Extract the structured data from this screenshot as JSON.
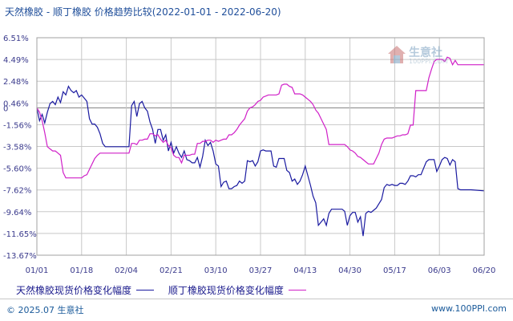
{
  "title": "天然橡胶 - 顺丁橡胶  价格趋势比较(2022-01-01 - 2022-06-20)",
  "watermark": {
    "text": "生意社",
    "sub": "100PPI.COM"
  },
  "footer": {
    "left": "© 2025.07 生意社",
    "right": "www.100PPI.com"
  },
  "colors": {
    "series1": "#1a1aa0",
    "series2": "#d020c8",
    "grid": "#c8c8c8",
    "zero": "#808080"
  },
  "chart_data": {
    "type": "line",
    "title": "天然橡胶 - 顺丁橡胶  价格趋势比较(2022-01-01 - 2022-06-20)",
    "y_ticks": [
      "6.51%",
      "4.49%",
      "2.48%",
      "0.46%",
      "-1.56%",
      "-3.58%",
      "-5.60%",
      "-7.62%",
      "-9.64%",
      "-11.65%",
      "-13.67%"
    ],
    "x_ticks": [
      "01/01",
      "01/18",
      "02/04",
      "02/21",
      "03/10",
      "03/27",
      "04/13",
      "04/30",
      "05/17",
      "06/03",
      "06/20"
    ],
    "extra_y_label": "0",
    "ylim": [
      -13.67,
      6.51
    ],
    "x_range_days": [
      0,
      170
    ],
    "grid": true,
    "legend_position": "bottom",
    "series": [
      {
        "name": "天然橡胶现货价格变化幅度",
        "points": [
          [
            0,
            0
          ],
          [
            1,
            -1.2
          ],
          [
            2,
            -0.6
          ],
          [
            3,
            -1.4
          ],
          [
            4,
            -0.4
          ],
          [
            5,
            0.4
          ],
          [
            6,
            0.6
          ],
          [
            7,
            0.3
          ],
          [
            8,
            1.0
          ],
          [
            9,
            0.5
          ],
          [
            10,
            1.5
          ],
          [
            11,
            1.2
          ],
          [
            12,
            2.0
          ],
          [
            13,
            1.6
          ],
          [
            14,
            1.4
          ],
          [
            15,
            1.6
          ],
          [
            16,
            1.0
          ],
          [
            17,
            1.2
          ],
          [
            18,
            0.9
          ],
          [
            19,
            0.6
          ],
          [
            20,
            -1.0
          ],
          [
            21,
            -1.5
          ],
          [
            22,
            -1.5
          ],
          [
            23,
            -1.8
          ],
          [
            24,
            -2.4
          ],
          [
            25,
            -3.3
          ],
          [
            26,
            -3.6
          ],
          [
            28,
            -3.6
          ],
          [
            30,
            -3.6
          ],
          [
            32,
            -3.6
          ],
          [
            34,
            -3.6
          ],
          [
            35,
            -3.6
          ],
          [
            36,
            0.2
          ],
          [
            37,
            0.6
          ],
          [
            38,
            -0.8
          ],
          [
            39,
            0.4
          ],
          [
            40,
            0.6
          ],
          [
            41,
            0.0
          ],
          [
            42,
            -0.3
          ],
          [
            43,
            -1.3
          ],
          [
            44,
            -2.0
          ],
          [
            45,
            -3.3
          ],
          [
            46,
            -2.0
          ],
          [
            47,
            -2.0
          ],
          [
            48,
            -3.0
          ],
          [
            49,
            -2.5
          ],
          [
            50,
            -4.0
          ],
          [
            51,
            -3.2
          ],
          [
            52,
            -4.2
          ],
          [
            53,
            -3.6
          ],
          [
            54,
            -4.2
          ],
          [
            55,
            -4.6
          ],
          [
            56,
            -4.0
          ],
          [
            57,
            -4.8
          ],
          [
            58,
            -4.9
          ],
          [
            59,
            -5.1
          ],
          [
            60,
            -5.1
          ],
          [
            61,
            -4.6
          ],
          [
            62,
            -5.5
          ],
          [
            63,
            -4.5
          ],
          [
            64,
            -3.0
          ],
          [
            65,
            -3.5
          ],
          [
            66,
            -3.2
          ],
          [
            67,
            -4.0
          ],
          [
            68,
            -5.2
          ],
          [
            69,
            -5.4
          ],
          [
            70,
            -7.3
          ],
          [
            71,
            -6.9
          ],
          [
            72,
            -6.8
          ],
          [
            73,
            -7.5
          ],
          [
            74,
            -7.5
          ],
          [
            75,
            -7.3
          ],
          [
            76,
            -7.2
          ],
          [
            77,
            -6.8
          ],
          [
            78,
            -7.0
          ],
          [
            79,
            -6.8
          ],
          [
            80,
            -4.9
          ],
          [
            81,
            -5.0
          ],
          [
            82,
            -4.9
          ],
          [
            83,
            -5.4
          ],
          [
            84,
            -5.0
          ],
          [
            85,
            -4.0
          ],
          [
            86,
            -3.9
          ],
          [
            87,
            -4.0
          ],
          [
            88,
            -4.0
          ],
          [
            89,
            -4.0
          ],
          [
            90,
            -5.4
          ],
          [
            91,
            -5.5
          ],
          [
            92,
            -4.7
          ],
          [
            93,
            -4.7
          ],
          [
            94,
            -4.7
          ],
          [
            95,
            -5.8
          ],
          [
            96,
            -6.0
          ],
          [
            97,
            -6.8
          ],
          [
            98,
            -6.6
          ],
          [
            99,
            -7.1
          ],
          [
            100,
            -6.8
          ],
          [
            101,
            -6.2
          ],
          [
            102,
            -5.4
          ],
          [
            103,
            -6.3
          ],
          [
            104,
            -7.2
          ],
          [
            105,
            -8.2
          ],
          [
            106,
            -8.8
          ],
          [
            107,
            -10.9
          ],
          [
            108,
            -10.6
          ],
          [
            109,
            -10.3
          ],
          [
            110,
            -10.9
          ],
          [
            111,
            -9.8
          ],
          [
            112,
            -9.4
          ],
          [
            114,
            -9.4
          ],
          [
            115,
            -9.4
          ],
          [
            116,
            -9.4
          ],
          [
            117,
            -9.6
          ],
          [
            118,
            -10.9
          ],
          [
            119,
            -10.0
          ],
          [
            120,
            -9.7
          ],
          [
            121,
            -9.7
          ],
          [
            122,
            -10.6
          ],
          [
            123,
            -10.1
          ],
          [
            124,
            -11.9
          ],
          [
            125,
            -9.8
          ],
          [
            126,
            -9.6
          ],
          [
            127,
            -9.7
          ],
          [
            128,
            -9.5
          ],
          [
            129,
            -9.3
          ],
          [
            130,
            -8.9
          ],
          [
            131,
            -8.5
          ],
          [
            132,
            -7.4
          ],
          [
            133,
            -7.1
          ],
          [
            134,
            -7.2
          ],
          [
            135,
            -7.1
          ],
          [
            136,
            -7.2
          ],
          [
            137,
            -7.2
          ],
          [
            138,
            -7.0
          ],
          [
            139,
            -7.0
          ],
          [
            140,
            -7.1
          ],
          [
            141,
            -6.8
          ],
          [
            142,
            -6.3
          ],
          [
            143,
            -6.3
          ],
          [
            144,
            -6.4
          ],
          [
            145,
            -6.2
          ],
          [
            146,
            -6.2
          ],
          [
            147,
            -5.6
          ],
          [
            148,
            -5.0
          ],
          [
            149,
            -4.8
          ],
          [
            150,
            -4.8
          ],
          [
            151,
            -4.8
          ],
          [
            152,
            -5.9
          ],
          [
            153,
            -5.4
          ],
          [
            154,
            -4.8
          ],
          [
            155,
            -4.6
          ],
          [
            156,
            -4.7
          ],
          [
            157,
            -5.3
          ],
          [
            158,
            -4.8
          ],
          [
            159,
            -5.0
          ],
          [
            160,
            -7.5
          ],
          [
            161,
            -7.6
          ],
          [
            162,
            -7.6
          ],
          [
            165,
            -7.6
          ],
          [
            170,
            -7.7
          ]
        ]
      },
      {
        "name": "顺丁橡胶现货价格变化幅度",
        "points": [
          [
            0,
            0
          ],
          [
            1,
            -0.4
          ],
          [
            2,
            -1.2
          ],
          [
            3,
            -2.3
          ],
          [
            4,
            -3.6
          ],
          [
            5,
            -3.8
          ],
          [
            6,
            -4.0
          ],
          [
            7,
            -4.0
          ],
          [
            8,
            -4.2
          ],
          [
            9,
            -4.4
          ],
          [
            10,
            -6.0
          ],
          [
            11,
            -6.5
          ],
          [
            12,
            -6.5
          ],
          [
            13,
            -6.5
          ],
          [
            15,
            -6.5
          ],
          [
            17,
            -6.5
          ],
          [
            18,
            -6.3
          ],
          [
            19,
            -6.2
          ],
          [
            20,
            -5.7
          ],
          [
            22,
            -4.7
          ],
          [
            23,
            -4.4
          ],
          [
            24,
            -4.2
          ],
          [
            30,
            -4.2
          ],
          [
            35,
            -4.2
          ],
          [
            36,
            -3.3
          ],
          [
            37,
            -3.3
          ],
          [
            38,
            -3.4
          ],
          [
            39,
            -3.0
          ],
          [
            40,
            -3.0
          ],
          [
            41,
            -2.9
          ],
          [
            42,
            -2.9
          ],
          [
            43,
            -2.4
          ],
          [
            44,
            -2.4
          ],
          [
            45,
            -2.6
          ],
          [
            46,
            -2.5
          ],
          [
            47,
            -2.9
          ],
          [
            48,
            -3.2
          ],
          [
            49,
            -3.0
          ],
          [
            50,
            -3.5
          ],
          [
            51,
            -3.7
          ],
          [
            52,
            -4.4
          ],
          [
            53,
            -4.6
          ],
          [
            54,
            -4.6
          ],
          [
            55,
            -5.1
          ],
          [
            56,
            -4.4
          ],
          [
            57,
            -4.4
          ],
          [
            58,
            -4.4
          ],
          [
            59,
            -4.3
          ],
          [
            60,
            -4.3
          ],
          [
            61,
            -3.3
          ],
          [
            62,
            -3.3
          ],
          [
            63,
            -3.1
          ],
          [
            64,
            -3.1
          ],
          [
            65,
            -3.0
          ],
          [
            66,
            -3.0
          ],
          [
            67,
            -3.2
          ],
          [
            68,
            -3.0
          ],
          [
            69,
            -3.1
          ],
          [
            70,
            -3.0
          ],
          [
            71,
            -2.9
          ],
          [
            72,
            -2.9
          ],
          [
            73,
            -2.5
          ],
          [
            74,
            -2.5
          ],
          [
            75,
            -2.3
          ],
          [
            76,
            -2.0
          ],
          [
            77,
            -1.6
          ],
          [
            78,
            -1.3
          ],
          [
            79,
            -1.0
          ],
          [
            80,
            -0.3
          ],
          [
            81,
            0.0
          ],
          [
            82,
            0.1
          ],
          [
            83,
            0.3
          ],
          [
            84,
            0.6
          ],
          [
            85,
            0.7
          ],
          [
            86,
            1.0
          ],
          [
            87,
            1.1
          ],
          [
            88,
            1.2
          ],
          [
            89,
            1.2
          ],
          [
            90,
            1.2
          ],
          [
            91,
            1.2
          ],
          [
            92,
            1.3
          ],
          [
            93,
            2.1
          ],
          [
            94,
            2.2
          ],
          [
            95,
            2.2
          ],
          [
            96,
            2.0
          ],
          [
            97,
            1.9
          ],
          [
            98,
            1.3
          ],
          [
            99,
            1.3
          ],
          [
            100,
            1.3
          ],
          [
            101,
            1.2
          ],
          [
            102,
            1.0
          ],
          [
            103,
            0.8
          ],
          [
            104,
            0.6
          ],
          [
            105,
            0.3
          ],
          [
            106,
            -0.2
          ],
          [
            107,
            -0.5
          ],
          [
            108,
            -1.0
          ],
          [
            109,
            -1.5
          ],
          [
            110,
            -2.0
          ],
          [
            111,
            -3.4
          ],
          [
            112,
            -3.4
          ],
          [
            113,
            -3.4
          ],
          [
            115,
            -3.4
          ],
          [
            117,
            -3.4
          ],
          [
            118,
            -3.6
          ],
          [
            119,
            -3.9
          ],
          [
            120,
            -4.0
          ],
          [
            121,
            -4.2
          ],
          [
            122,
            -4.5
          ],
          [
            123,
            -4.6
          ],
          [
            124,
            -4.8
          ],
          [
            125,
            -5.0
          ],
          [
            126,
            -5.2
          ],
          [
            127,
            -5.2
          ],
          [
            128,
            -5.2
          ],
          [
            129,
            -4.7
          ],
          [
            130,
            -4.2
          ],
          [
            131,
            -3.4
          ],
          [
            132,
            -2.9
          ],
          [
            133,
            -2.8
          ],
          [
            134,
            -2.8
          ],
          [
            135,
            -2.8
          ],
          [
            136,
            -2.7
          ],
          [
            137,
            -2.6
          ],
          [
            138,
            -2.6
          ],
          [
            139,
            -2.5
          ],
          [
            140,
            -2.5
          ],
          [
            141,
            -2.4
          ],
          [
            142,
            -1.6
          ],
          [
            143,
            -1.6
          ],
          [
            144,
            1.6
          ],
          [
            145,
            1.6
          ],
          [
            146,
            1.6
          ],
          [
            147,
            1.6
          ],
          [
            148,
            1.6
          ],
          [
            149,
            2.8
          ],
          [
            150,
            3.6
          ],
          [
            151,
            4.3
          ],
          [
            152,
            4.5
          ],
          [
            153,
            4.5
          ],
          [
            154,
            4.5
          ],
          [
            155,
            4.3
          ],
          [
            156,
            4.7
          ],
          [
            157,
            4.6
          ],
          [
            158,
            4.0
          ],
          [
            159,
            4.4
          ],
          [
            160,
            4.0
          ],
          [
            161,
            4.0
          ],
          [
            162,
            4.0
          ],
          [
            165,
            4.0
          ],
          [
            170,
            4.0
          ]
        ]
      }
    ]
  }
}
